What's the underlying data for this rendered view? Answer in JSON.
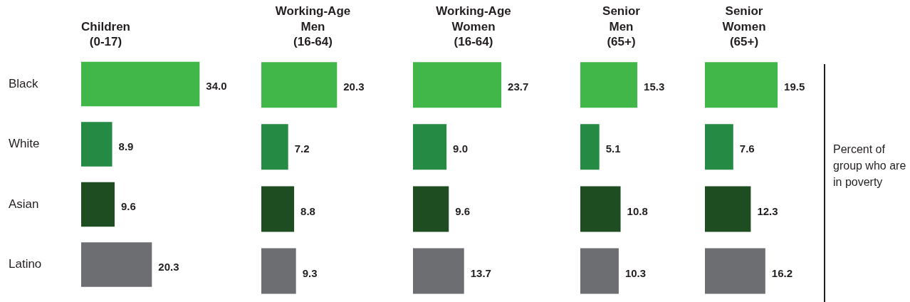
{
  "chart_data": [
    {
      "type": "bar",
      "orientation": "horizontal",
      "title": "Children\n(0-17)",
      "categories": [
        "Black",
        "White",
        "Asian",
        "Latino"
      ],
      "values": [
        34.0,
        8.9,
        9.6,
        20.3
      ],
      "value_labels": [
        "34.0",
        "8.9",
        "9.6",
        "20.3"
      ],
      "colors": [
        "#41b649",
        "#258a43",
        "#1e4d22",
        "#6d6e71"
      ],
      "tick_labels": "y"
    },
    {
      "type": "bar",
      "orientation": "horizontal",
      "title": "Working-Age\nMen\n(16-64)",
      "categories": [
        null,
        null,
        null,
        null
      ],
      "values": [
        20.3,
        7.2,
        8.8,
        9.3
      ],
      "value_labels": [
        "20.3",
        "7.2",
        "8.8",
        "9.3"
      ],
      "colors": [
        "#41b649",
        "#258a43",
        "#1e4d22",
        "#6d6e71"
      ],
      "tick_labels": false
    },
    {
      "type": "bar",
      "orientation": "horizontal",
      "title": "Working-Age\nWomen\n(16-64)",
      "categories": [
        null,
        null,
        null,
        null
      ],
      "values": [
        23.7,
        9.0,
        9.6,
        13.7
      ],
      "value_labels": [
        "23.7",
        "9.0",
        "9.6",
        "13.7"
      ],
      "colors": [
        "#41b649",
        "#258a43",
        "#1e4d22",
        "#6d6e71"
      ],
      "tick_labels": false
    },
    {
      "type": "bar",
      "orientation": "horizontal",
      "title": "Senior\nMen\n(65+)",
      "categories": [
        null,
        null,
        null,
        null
      ],
      "values": [
        15.3,
        5.1,
        10.8,
        10.3
      ],
      "value_labels": [
        "15.3",
        "5.1",
        "10.8",
        "10.3"
      ],
      "colors": [
        "#41b649",
        "#258a43",
        "#1e4d22",
        "#6d6e71"
      ],
      "tick_labels": false
    },
    {
      "type": "bar",
      "orientation": "horizontal",
      "title": "Senior\nWomen\n(65+)",
      "categories": [
        null,
        null,
        null,
        null
      ],
      "values": [
        19.5,
        7.6,
        12.3,
        16.2
      ],
      "value_labels": [
        "19.5",
        "7.6",
        "12.3",
        "16.2"
      ],
      "colors": [
        "#41b649",
        "#258a43",
        "#1e4d22",
        "#6d6e71"
      ],
      "tick_labels": false,
      "annotations": [
        "Percent of group who are in poverty"
      ]
    }
  ]
}
